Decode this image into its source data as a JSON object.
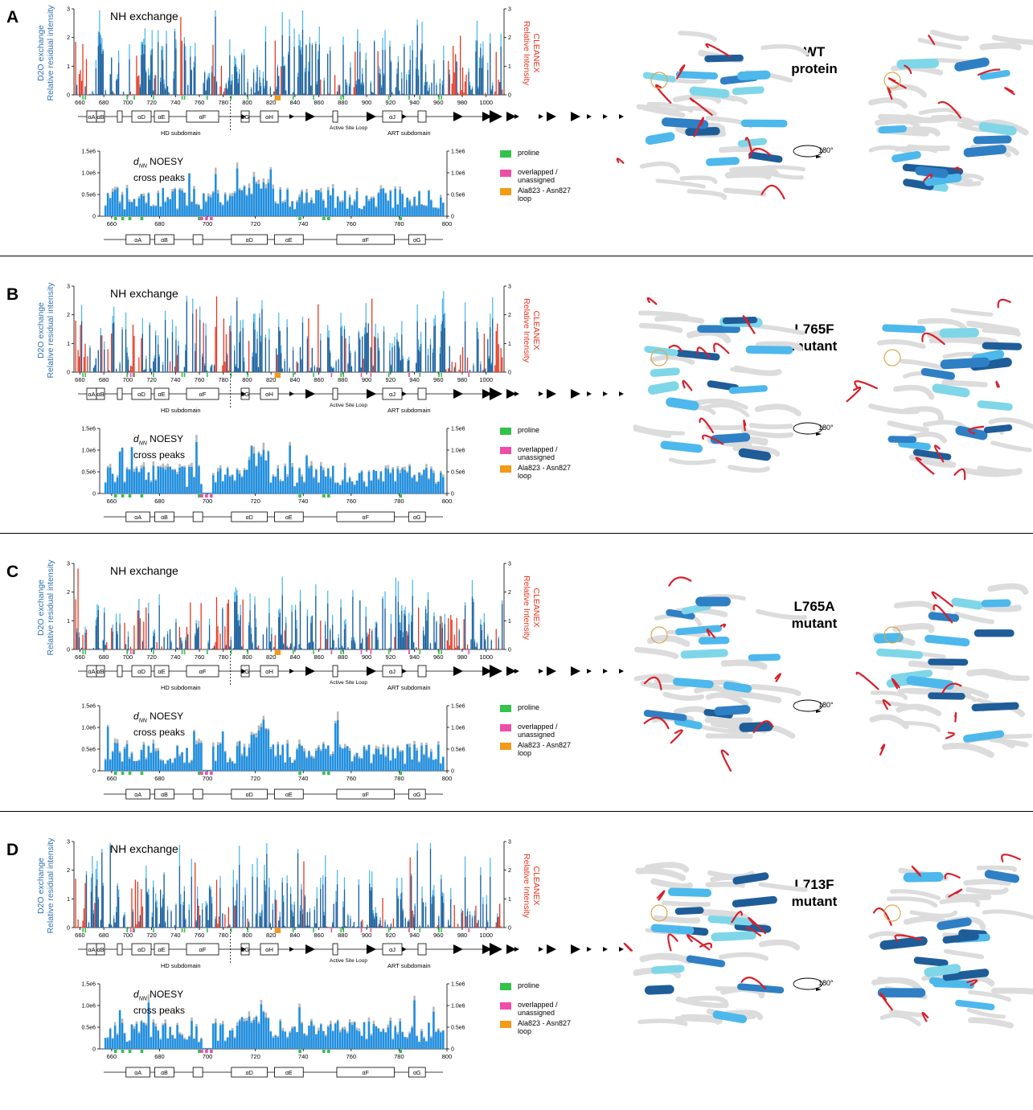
{
  "colors": {
    "dark_blue": "#1f5d99",
    "light_blue": "#4db8ec",
    "red": "#e8331b",
    "noesy_blue": "#1e8fe1",
    "grey": "#b7b7b7",
    "proline": "#33c24a",
    "overlapped": "#ee4fa6",
    "loop": "#f39a17"
  },
  "labels": {
    "nh_title": "NH exchange",
    "left_axis_line1": "D2O exchange",
    "left_axis_line2": "Relative residual intensity",
    "right_axis_line1": "CLEANEX",
    "right_axis_line2": "Relative Intensity",
    "hd_subdomain": "HD subdomain",
    "active_site_loop": "Active Site Loop",
    "art_subdomain": "ART subdomain",
    "noesy_d": "d",
    "noesy_sub": "NN",
    "noesy_rest": " NOESY",
    "noesy_line2": "cross peaks",
    "rotation": "180°"
  },
  "legend": [
    {
      "label": "proline",
      "color": "#33c24a"
    },
    {
      "label": "overlapped / unassigned",
      "color": "#ee4fa6"
    },
    {
      "label": "Ala823 - Asn827 loop",
      "color": "#f39a17"
    }
  ],
  "panels": [
    {
      "letter": "A",
      "variant_line1": "WT",
      "variant_line2": "protein"
    },
    {
      "letter": "B",
      "variant_line1": "L765F",
      "variant_line2": "mutant"
    },
    {
      "letter": "C",
      "variant_line1": "L765A",
      "variant_line2": "mutant"
    },
    {
      "letter": "D",
      "variant_line1": "L713F",
      "variant_line2": "mutant"
    }
  ],
  "chart_data": [
    {
      "type": "bar",
      "name": "NH exchange",
      "x_tick_labels": [
        "660",
        "680",
        "700",
        "720",
        "740",
        "760",
        "780",
        "800",
        "820",
        "840",
        "860",
        "880",
        "900",
        "920",
        "940",
        "960",
        "980",
        "1000"
      ],
      "x_range": [
        655,
        1015
      ],
      "left_axis": {
        "label": "D2O exchange Relative residual intensity",
        "ticks": [
          "0",
          "1",
          "2",
          "3"
        ],
        "ylim": [
          0,
          3
        ]
      },
      "right_axis": {
        "label": "CLEANEX Relative Intensity",
        "ticks": [
          "0",
          "1",
          "2",
          "3"
        ],
        "ylim": [
          0,
          3
        ]
      },
      "series": [
        "D2O exchange",
        "CLEANEX"
      ],
      "secondary_structure_labels": [
        "αA",
        "αB",
        "αD",
        "αE",
        "αF",
        "αG",
        "αH",
        "αJ"
      ],
      "annotations": [
        "HD subdomain",
        "Active Site Loop",
        "ART subdomain"
      ]
    },
    {
      "type": "bar",
      "name": "dNN NOESY cross peaks",
      "x_tick_labels": [
        "660",
        "680",
        "700",
        "720",
        "740",
        "760",
        "780",
        "800"
      ],
      "x_range": [
        655,
        800
      ],
      "y_ticks": [
        "0",
        "0.5e6",
        "1.0e6",
        "1.5e6"
      ],
      "ylim": [
        0,
        1500000
      ],
      "secondary_structure_labels": [
        "αA",
        "αB",
        "αD",
        "αE",
        "αF",
        "αG"
      ]
    }
  ]
}
